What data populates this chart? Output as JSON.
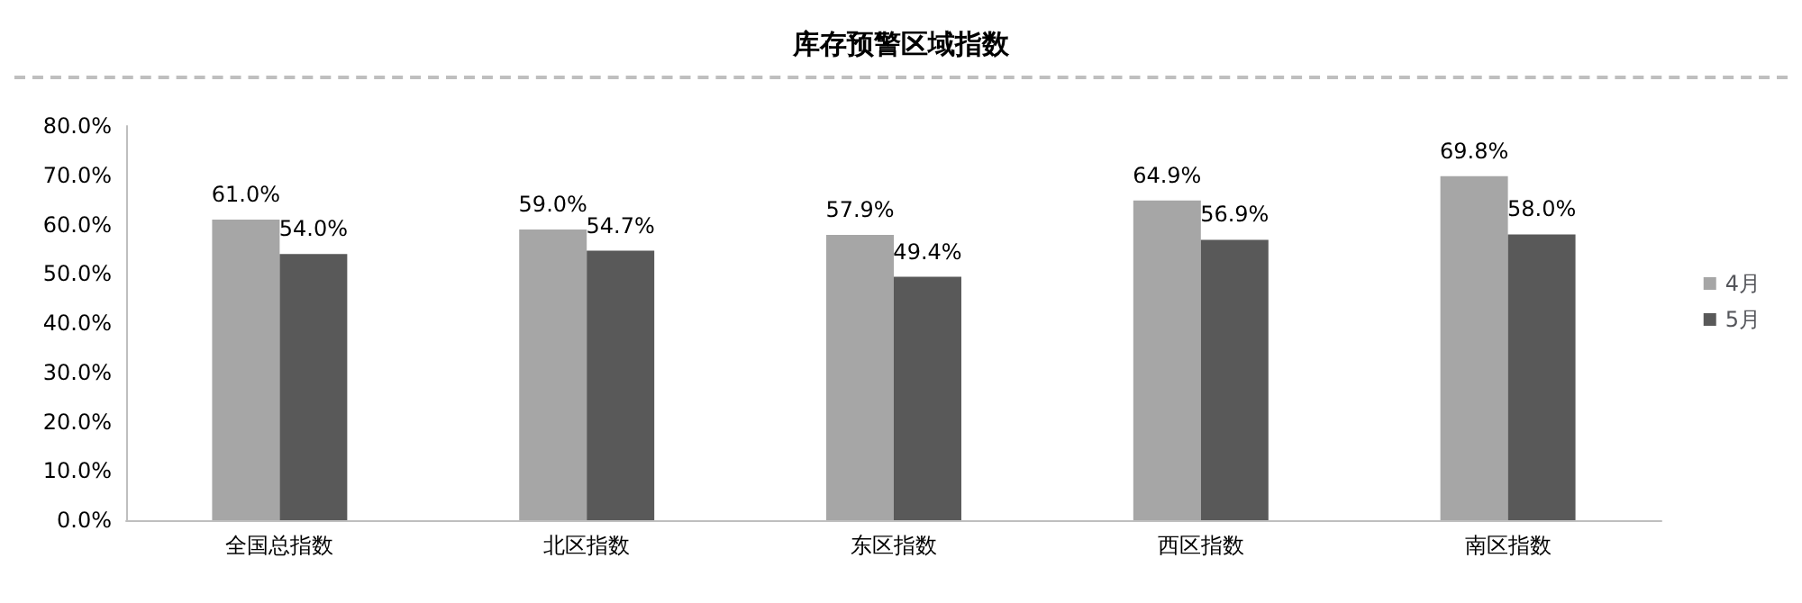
{
  "chart_data": {
    "type": "bar",
    "title": "库存预警区域指数",
    "categories": [
      "全国总指数",
      "北区指数",
      "东区指数",
      "西区指数",
      "南区指数"
    ],
    "series": [
      {
        "name": "4月",
        "color": "#a6a6a6",
        "values": [
          61.0,
          59.0,
          57.9,
          64.9,
          69.8
        ],
        "value_labels": [
          "61.0%",
          "59.0%",
          "57.9%",
          "64.9%",
          "69.8%"
        ]
      },
      {
        "name": "5月",
        "color": "#595959",
        "values": [
          54.0,
          54.7,
          49.4,
          56.9,
          58.0
        ],
        "value_labels": [
          "54.0%",
          "54.7%",
          "49.4%",
          "56.9%",
          "58.0%"
        ]
      }
    ],
    "ylim": [
      0,
      80
    ],
    "yticks": [
      {
        "value": 0,
        "label": "0.0%"
      },
      {
        "value": 10,
        "label": "10.0%"
      },
      {
        "value": 20,
        "label": "20.0%"
      },
      {
        "value": 30,
        "label": "30.0%"
      },
      {
        "value": 40,
        "label": "40.0%"
      },
      {
        "value": 50,
        "label": "50.0%"
      },
      {
        "value": 60,
        "label": "60.0%"
      },
      {
        "value": 70,
        "label": "70.0%"
      },
      {
        "value": 80,
        "label": "80.0%"
      }
    ],
    "grid": false,
    "legend": "right"
  }
}
